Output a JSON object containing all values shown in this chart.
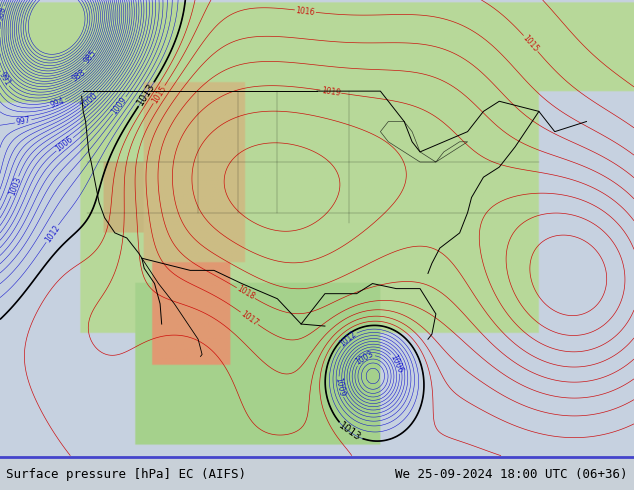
{
  "title_left": "Surface pressure [hPa] EC (AIFS)",
  "title_right": "We 25-09-2024 18:00 UTC (06+36)",
  "fig_width": 6.34,
  "fig_height": 4.9,
  "dpi": 100,
  "title_fontsize": 9
}
